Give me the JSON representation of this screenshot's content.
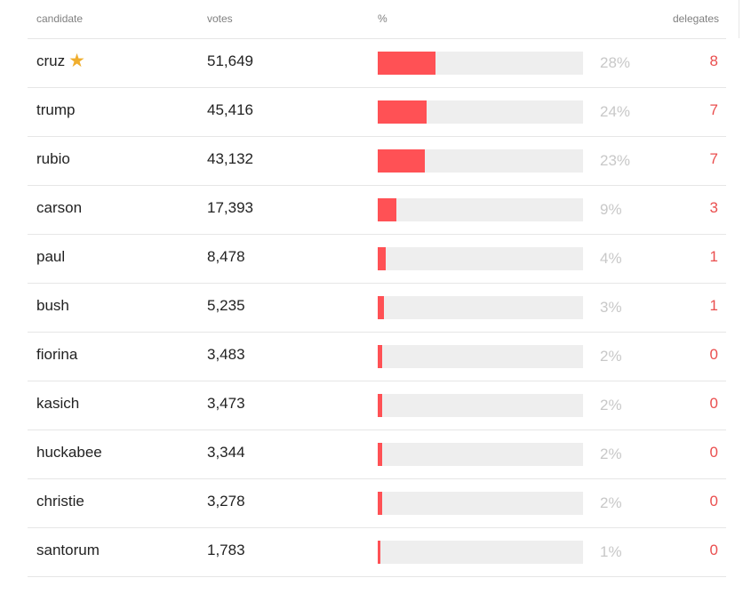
{
  "header": {
    "candidate": "candidate",
    "votes": "votes",
    "percent": "%",
    "delegates": "delegates"
  },
  "colors": {
    "bar_fill": "#ff5155",
    "bar_track": "#eeeeee",
    "delegates": "#ea4e4e",
    "percent": "#c8c8c8",
    "winner_star": "#f0ae2e"
  },
  "chart_data": {
    "type": "table",
    "columns": [
      "candidate",
      "votes",
      "%",
      "delegates"
    ],
    "rows": [
      {
        "candidate": "cruz",
        "winner": true,
        "votes": "51,649",
        "vote_count": 51649,
        "percent": 28,
        "percent_label": "28%",
        "delegates": "8"
      },
      {
        "candidate": "trump",
        "winner": false,
        "votes": "45,416",
        "vote_count": 45416,
        "percent": 24,
        "percent_label": "24%",
        "delegates": "7"
      },
      {
        "candidate": "rubio",
        "winner": false,
        "votes": "43,132",
        "vote_count": 43132,
        "percent": 23,
        "percent_label": "23%",
        "delegates": "7"
      },
      {
        "candidate": "carson",
        "winner": false,
        "votes": "17,393",
        "vote_count": 17393,
        "percent": 9,
        "percent_label": "9%",
        "delegates": "3"
      },
      {
        "candidate": "paul",
        "winner": false,
        "votes": "8,478",
        "vote_count": 8478,
        "percent": 4,
        "percent_label": "4%",
        "delegates": "1"
      },
      {
        "candidate": "bush",
        "winner": false,
        "votes": "5,235",
        "vote_count": 5235,
        "percent": 3,
        "percent_label": "3%",
        "delegates": "1"
      },
      {
        "candidate": "fiorina",
        "winner": false,
        "votes": "3,483",
        "vote_count": 3483,
        "percent": 2,
        "percent_label": "2%",
        "delegates": "0"
      },
      {
        "candidate": "kasich",
        "winner": false,
        "votes": "3,473",
        "vote_count": 3473,
        "percent": 2,
        "percent_label": "2%",
        "delegates": "0"
      },
      {
        "candidate": "huckabee",
        "winner": false,
        "votes": "3,344",
        "vote_count": 3344,
        "percent": 2,
        "percent_label": "2%",
        "delegates": "0"
      },
      {
        "candidate": "christie",
        "winner": false,
        "votes": "3,278",
        "vote_count": 3278,
        "percent": 2,
        "percent_label": "2%",
        "delegates": "0"
      },
      {
        "candidate": "santorum",
        "winner": false,
        "votes": "1,783",
        "vote_count": 1783,
        "percent": 1,
        "percent_label": "1%",
        "delegates": "0"
      }
    ]
  },
  "icons": {
    "winner": "star-icon"
  }
}
